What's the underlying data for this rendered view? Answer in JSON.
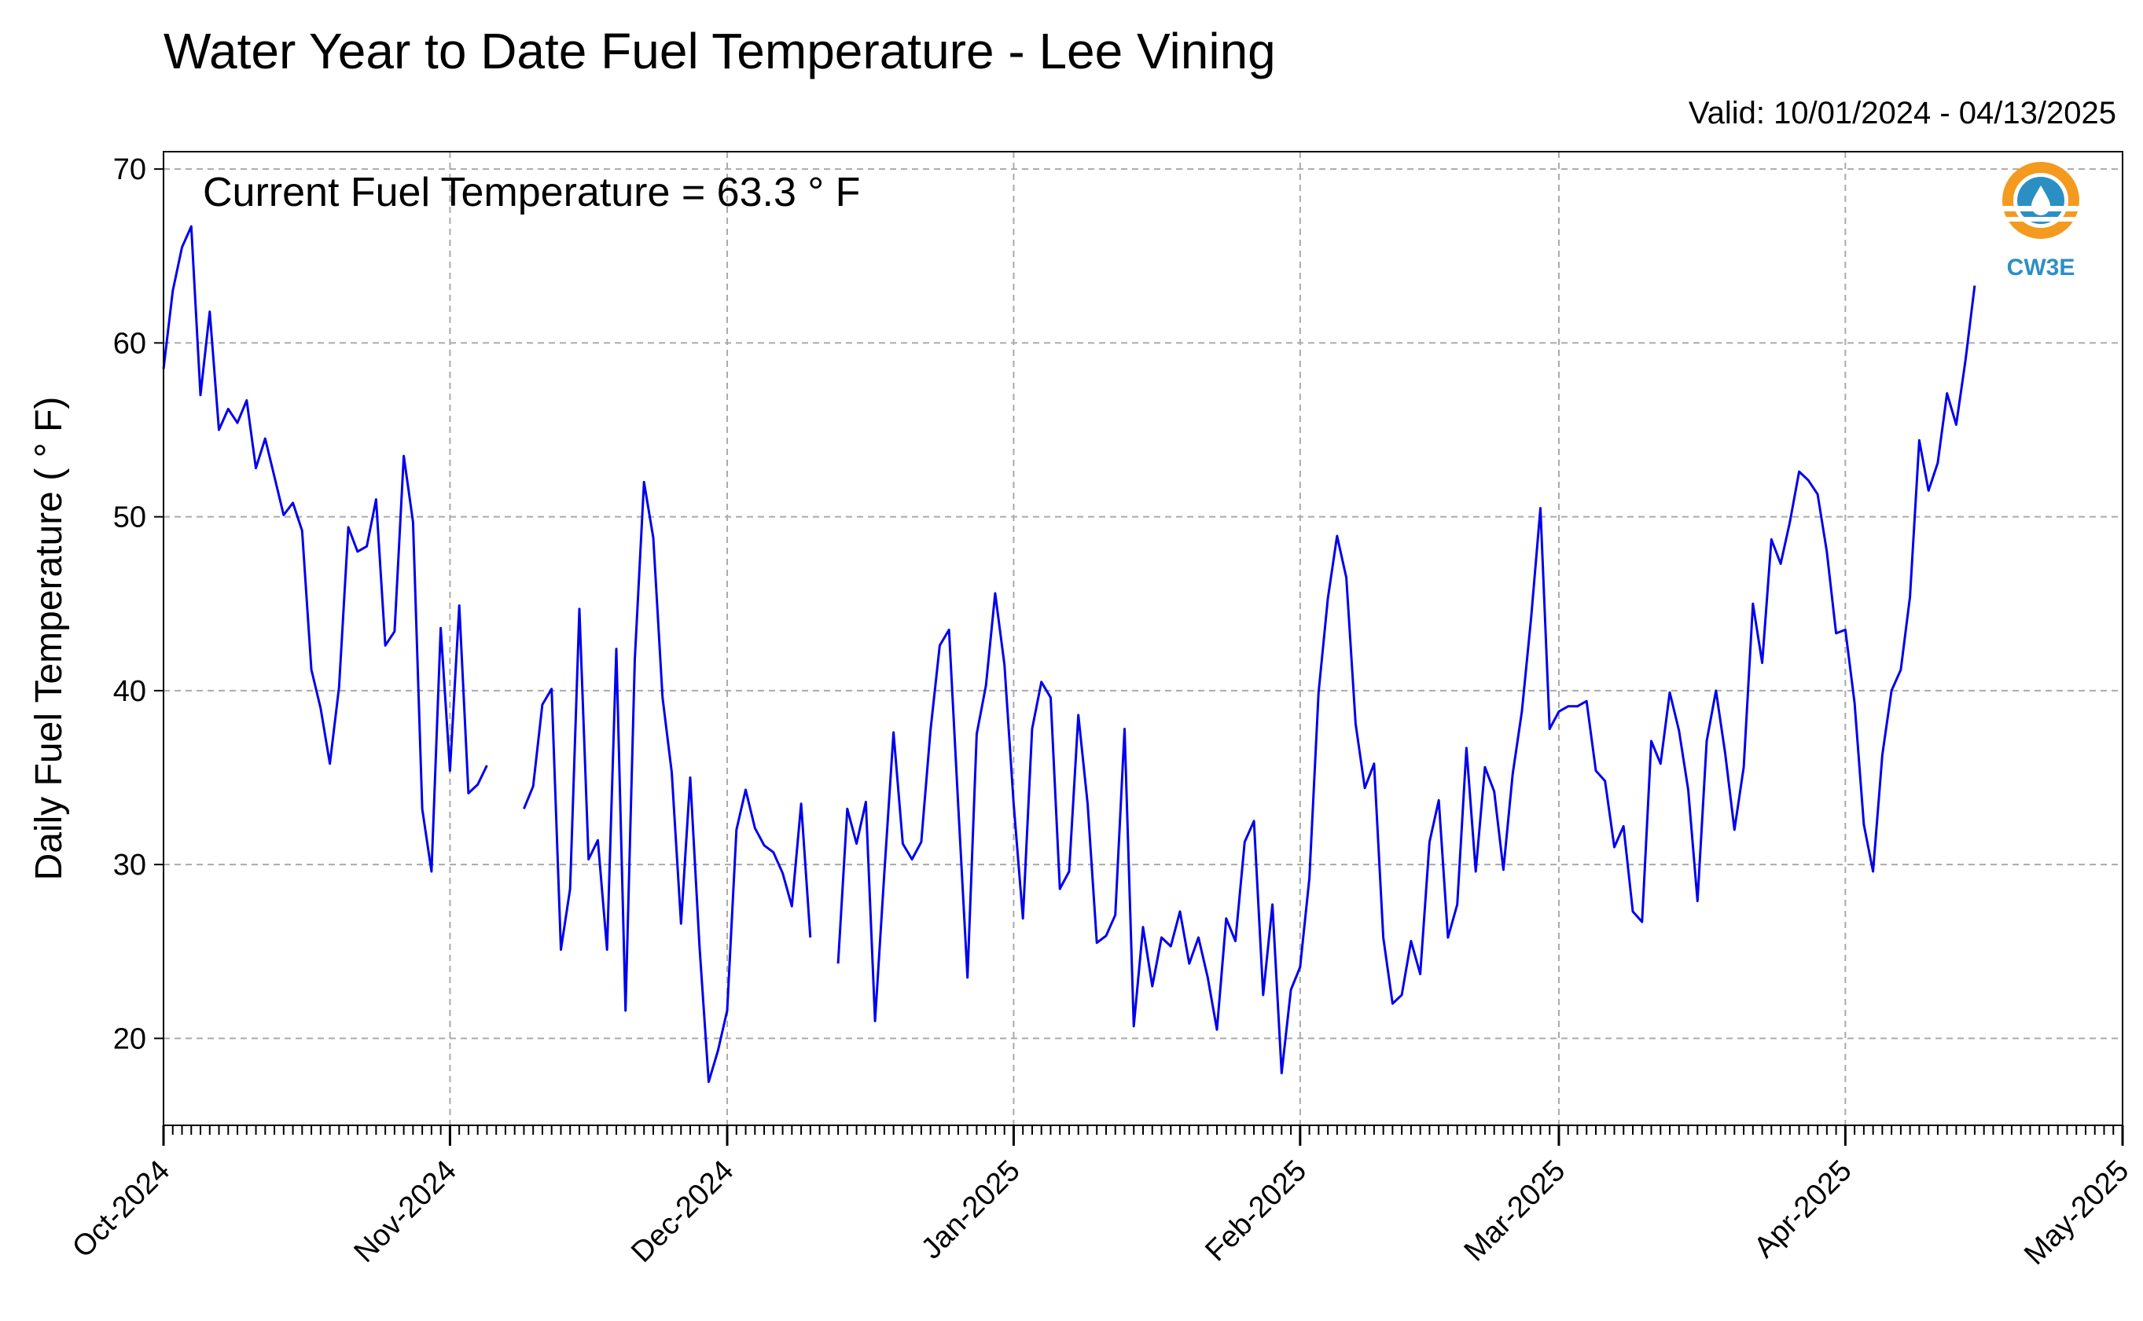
{
  "title": "Water Year to Date Fuel Temperature - Lee Vining",
  "valid_text": "Valid: 10/01/2024 - 04/13/2025",
  "logo_text": "CW3E",
  "colors": {
    "line": "#0000ee",
    "grid": "#aaaaaa",
    "logo_orange": "#f39a1f",
    "logo_blue": "#2c8fc4"
  },
  "chart_data": {
    "type": "line",
    "title": "Water Year to Date Fuel Temperature - Lee Vining",
    "xlabel": "",
    "ylabel": "Daily Fuel Temperature ( ° F)",
    "annotation": "Current Fuel Temperature = 63.3  ° F",
    "ylim": [
      15,
      71
    ],
    "yticks": [
      20,
      30,
      40,
      50,
      60,
      70
    ],
    "xlim": [
      "2024-10-01",
      "2025-05-01"
    ],
    "xticks": [
      {
        "date": "2024-10-01",
        "label": "Oct-2024"
      },
      {
        "date": "2024-11-01",
        "label": "Nov-2024"
      },
      {
        "date": "2024-12-01",
        "label": "Dec-2024"
      },
      {
        "date": "2025-01-01",
        "label": "Jan-2025"
      },
      {
        "date": "2025-02-01",
        "label": "Feb-2025"
      },
      {
        "date": "2025-03-01",
        "label": "Mar-2025"
      },
      {
        "date": "2025-04-01",
        "label": "Apr-2025"
      },
      {
        "date": "2025-05-01",
        "label": "May-2025"
      }
    ],
    "grid": true,
    "series": [
      {
        "start_date": "2024-10-01",
        "values": [
          58.5,
          63,
          65.5,
          66.7,
          57,
          61.8,
          55,
          56.2,
          55.4,
          56.7,
          52.8,
          54.5,
          52.3,
          50.1,
          50.8,
          49.2,
          41.2,
          39,
          35.8,
          40.2,
          49.4,
          48,
          48.3,
          51,
          42.6,
          43.4,
          53.5,
          49.7,
          33.2,
          29.6,
          43.6,
          35.4,
          44.9,
          34.1,
          34.6,
          35.7,
          null,
          null,
          null,
          33.2,
          34.5,
          39.2,
          40.1,
          25.1,
          28.6,
          44.7,
          30.3,
          31.4,
          25.1,
          42.4,
          21.6,
          41.8,
          52,
          48.8,
          39.6,
          35.3,
          26.6,
          35,
          25.3,
          17.5,
          19.3,
          21.6,
          32,
          34.3,
          32.1,
          31.1,
          30.7,
          29.5,
          27.6,
          33.5,
          25.8,
          null,
          null,
          24.3,
          33.2,
          31.2,
          33.6,
          21,
          29.5,
          37.6,
          31.2,
          30.3,
          31.3,
          37.7,
          42.6,
          43.5,
          33.4,
          23.5,
          37.5,
          40.3,
          45.6,
          41.5,
          33.5,
          26.9,
          37.8,
          40.5,
          39.6,
          28.6,
          29.6,
          38.6,
          33.5,
          25.5,
          25.9,
          27.1,
          37.8,
          20.7,
          26.4,
          23,
          25.8,
          25.3,
          27.3,
          24.3,
          25.8,
          23.5,
          20.5,
          26.9,
          25.6,
          31.3,
          32.5,
          22.5,
          27.7,
          18,
          22.8,
          24.1,
          29.2,
          39.9,
          45.3,
          48.9,
          46.5,
          38.1,
          34.4,
          35.8,
          25.8,
          22,
          22.5,
          25.6,
          23.7,
          31.3,
          33.7,
          25.8,
          27.7,
          36.7,
          29.6,
          35.6,
          34.2,
          29.7,
          35.2,
          38.8,
          44.2,
          50.5,
          37.8,
          38.8,
          39.1,
          39.1,
          39.4,
          35.4,
          34.8,
          31,
          32.2,
          27.3,
          26.7,
          37.1,
          35.8,
          39.9,
          37.7,
          34.3,
          27.9,
          37.1,
          40,
          36.4,
          32,
          35.6,
          45,
          41.6,
          48.7,
          47.3,
          49.7,
          52.6,
          52.1,
          51.3,
          48,
          43.3,
          43.5,
          39.3,
          32.3,
          29.6,
          36.3,
          40,
          41.2,
          45.4,
          54.4,
          51.5,
          53.1,
          57.1,
          55.3,
          59,
          63.3
        ]
      }
    ]
  }
}
